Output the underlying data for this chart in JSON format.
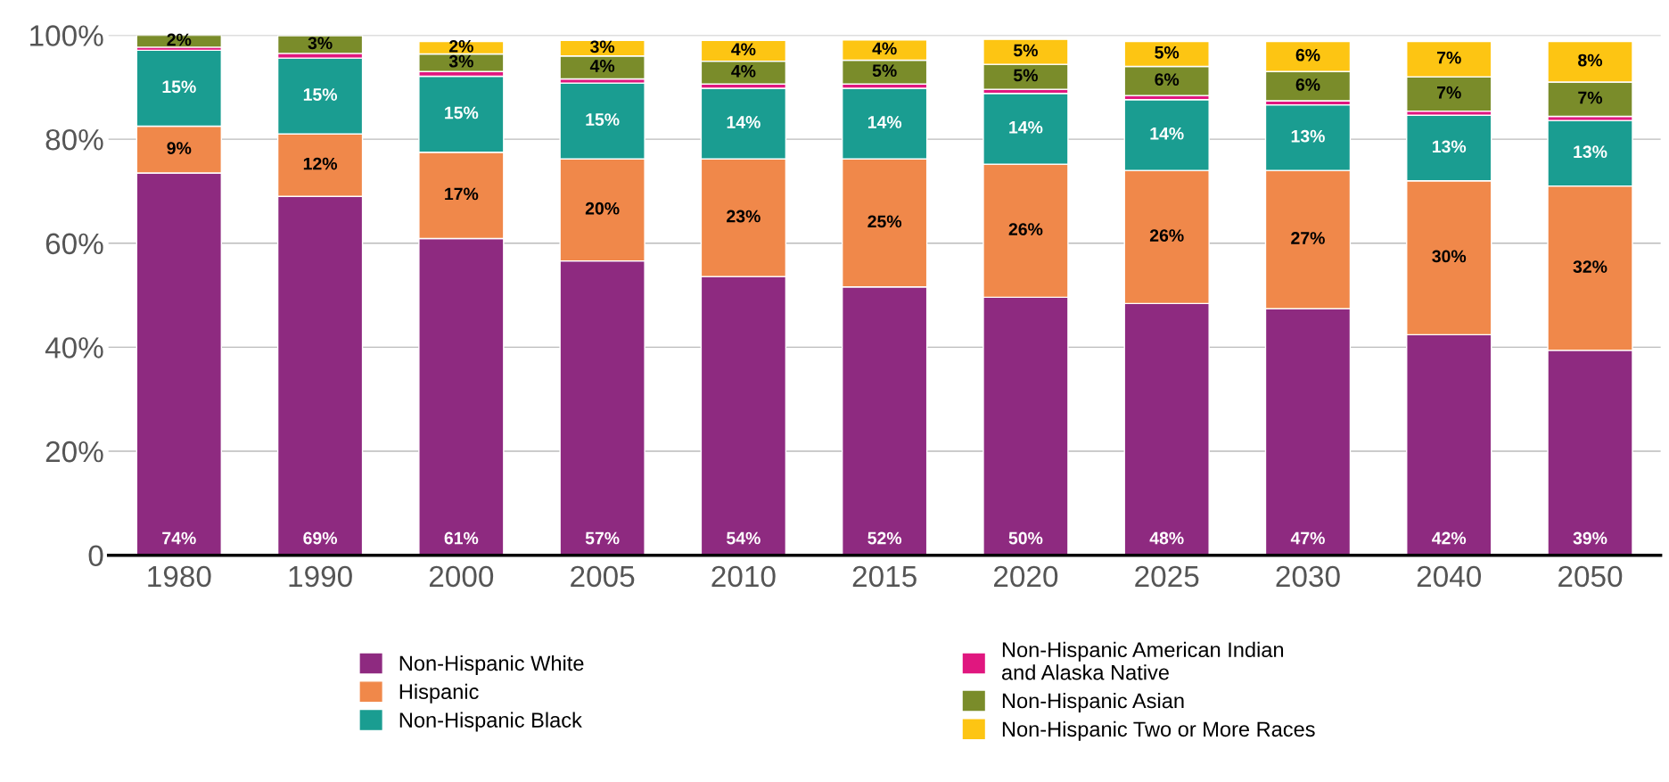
{
  "chart_data": {
    "type": "bar",
    "stacked": true,
    "categories": [
      "1980",
      "1990",
      "2000",
      "2005",
      "2010",
      "2015",
      "2020",
      "2025",
      "2030",
      "2040",
      "2050"
    ],
    "series": [
      {
        "name": "Non-Hispanic White",
        "color": "#8e2a80",
        "values": [
          73.5,
          69.0,
          60.9,
          56.6,
          53.6,
          51.6,
          49.6,
          48.4,
          47.4,
          42.4,
          39.4
        ],
        "value_labels": [
          "74%",
          "69%",
          "61%",
          "57%",
          "54%",
          "52%",
          "50%",
          "48%",
          "47%",
          "42%",
          "39%"
        ]
      },
      {
        "name": "Hispanic",
        "color": "#f0884a",
        "values": [
          9.0,
          12.0,
          16.6,
          19.6,
          22.6,
          24.6,
          25.6,
          25.6,
          26.6,
          29.6,
          31.6
        ],
        "value_labels": [
          "9%",
          "12%",
          "17%",
          "20%",
          "23%",
          "25%",
          "26%",
          "26%",
          "27%",
          "30%",
          "32%"
        ]
      },
      {
        "name": "Non-Hispanic Black",
        "color": "#1a9d91",
        "values": [
          14.6,
          14.6,
          14.6,
          14.6,
          13.6,
          13.6,
          13.6,
          13.6,
          12.6,
          12.6,
          12.6
        ],
        "value_labels": [
          "15%",
          "15%",
          "15%",
          "15%",
          "14%",
          "14%",
          "14%",
          "14%",
          "13%",
          "13%",
          "13%"
        ]
      },
      {
        "name": "Non-Hispanic American Indian\nand Alaska Native",
        "color": "#e0177f",
        "values": [
          0.6,
          0.9,
          0.9,
          0.8,
          0.8,
          0.8,
          0.8,
          0.8,
          0.8,
          0.8,
          0.8
        ]
      },
      {
        "name": "Non-Hispanic Asian",
        "color": "#7a8c2a",
        "values": [
          2.3,
          3.4,
          3.4,
          4.4,
          4.4,
          4.6,
          4.8,
          5.6,
          5.6,
          6.6,
          6.6
        ],
        "value_labels": [
          "2%",
          "3%",
          "3%",
          "4%",
          "4%",
          "5%",
          "5%",
          "6%",
          "6%",
          "7%",
          "7%"
        ]
      },
      {
        "name": "Non-Hispanic Two or More Races",
        "color": "#fdc513",
        "values": [
          null,
          null,
          2.4,
          3.0,
          4.0,
          3.9,
          4.8,
          4.8,
          5.8,
          6.8,
          7.8
        ],
        "value_labels": [
          null,
          null,
          "2%",
          "3%",
          "4%",
          "4%",
          "5%",
          "5%",
          "6%",
          "7%",
          "8%"
        ]
      }
    ],
    "ylim": [
      0,
      100
    ],
    "yticks": [
      {
        "value": 0,
        "label": "0"
      },
      {
        "value": 20,
        "label": "20%"
      },
      {
        "value": 40,
        "label": "40%"
      },
      {
        "value": 60,
        "label": "60%"
      },
      {
        "value": 80,
        "label": "80%"
      },
      {
        "value": 100,
        "label": "100%"
      }
    ],
    "grid": "y",
    "legend": "bottom"
  }
}
